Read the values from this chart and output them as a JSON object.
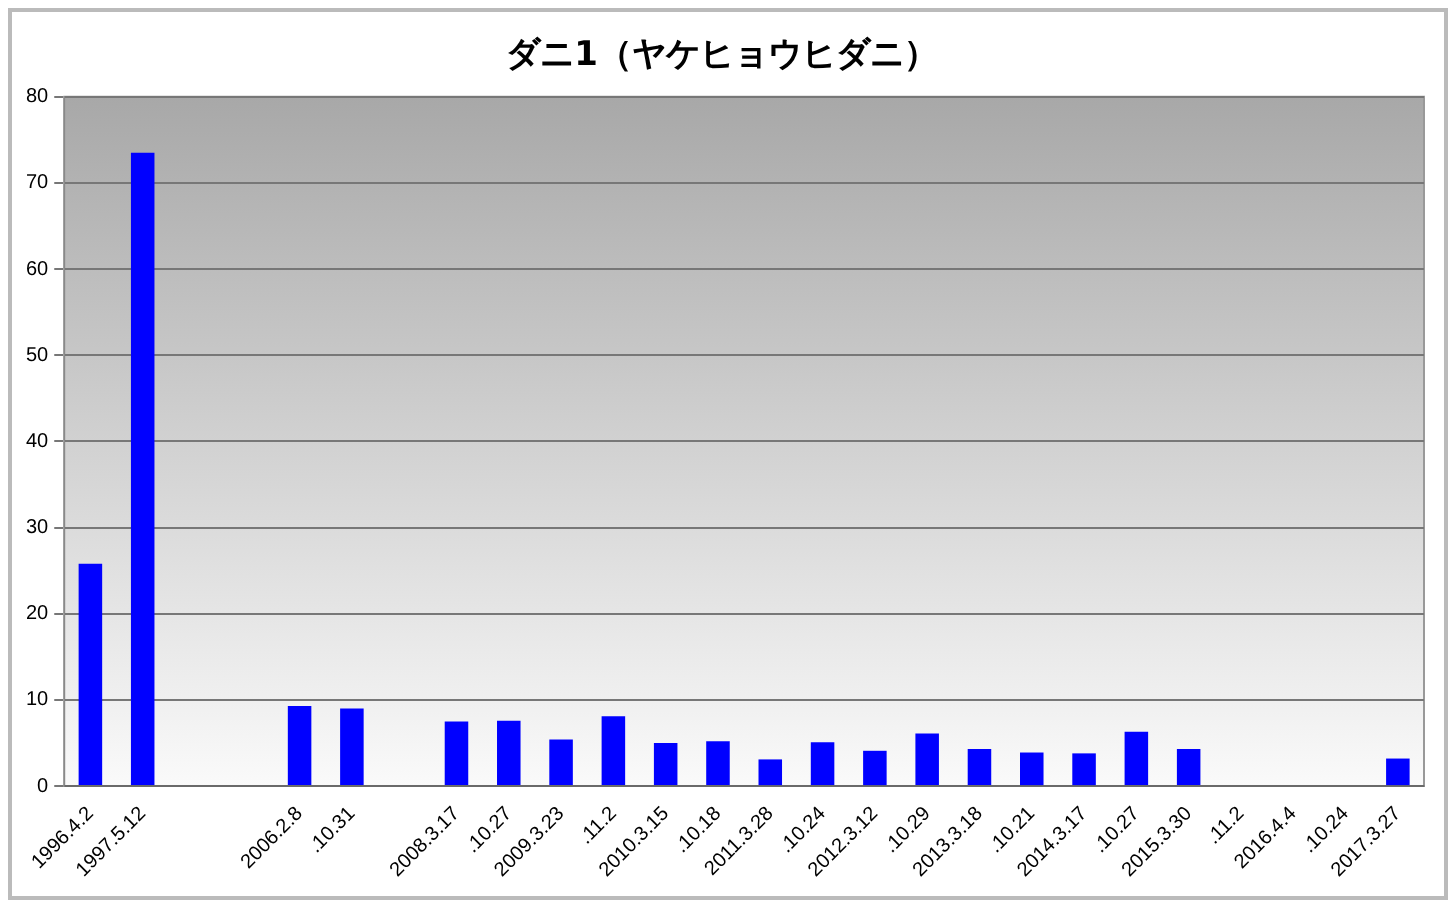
{
  "chart_data": {
    "type": "bar",
    "title": "ダニ1（ヤケヒョウヒダニ）",
    "categories": [
      "1996.4.2",
      "1997.5.12",
      null,
      null,
      "2006.2.8",
      ".10.31",
      null,
      "2008.3.17",
      ".10.27",
      "2009.3.23",
      ".11.2",
      "2010.3.15",
      ".10.18",
      "2011.3.28",
      ".10.24",
      "2012.3.12",
      ".10.29",
      "2013.3.18",
      ".10.21",
      "2014.3.17",
      ".10.27",
      "2015.3.30",
      ".11.2",
      "2016.4.4",
      ".10.24",
      "2017.3.27"
    ],
    "values": [
      25.8,
      73.5,
      null,
      null,
      9.3,
      9.0,
      null,
      7.5,
      7.6,
      5.4,
      8.1,
      5.0,
      5.2,
      3.1,
      5.1,
      4.1,
      6.1,
      4.3,
      3.9,
      3.8,
      6.3,
      4.3,
      null,
      null,
      null,
      3.2
    ],
    "color": "#0000ff",
    "ylim": [
      0,
      80
    ],
    "yticks": [
      0,
      10,
      20,
      30,
      40,
      50,
      60,
      70,
      80
    ],
    "grid": "y",
    "legend": false
  }
}
